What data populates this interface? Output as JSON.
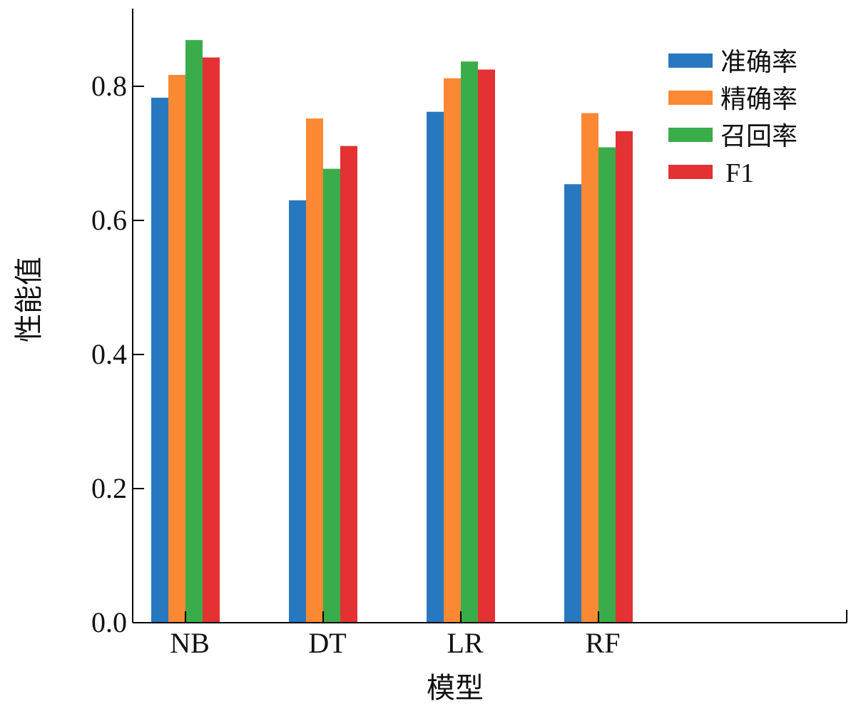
{
  "chart_data": {
    "type": "bar",
    "xlabel": "模型",
    "ylabel": "性能值",
    "ylim": [
      0,
      0.95
    ],
    "yticks": [
      "0.0",
      "0.2",
      "0.4",
      "0.6",
      "0.8"
    ],
    "ytick_values": [
      0.0,
      0.2,
      0.4,
      0.6,
      0.8
    ],
    "categories": [
      "NB",
      "DT",
      "LR",
      "RF"
    ],
    "series": [
      {
        "name": "准确率",
        "color": "#2878c0",
        "values": [
          0.783,
          0.63,
          0.762,
          0.654
        ]
      },
      {
        "name": "精确率",
        "color": "#fb8833",
        "values": [
          0.817,
          0.752,
          0.812,
          0.76
        ]
      },
      {
        "name": "召回率",
        "color": "#3aad4a",
        "values": [
          0.869,
          0.677,
          0.837,
          0.709
        ]
      },
      {
        "name": "F1",
        "color": "#e33134",
        "values": [
          0.843,
          0.711,
          0.825,
          0.733
        ]
      }
    ],
    "legend_position": "top-right",
    "grid": false
  }
}
